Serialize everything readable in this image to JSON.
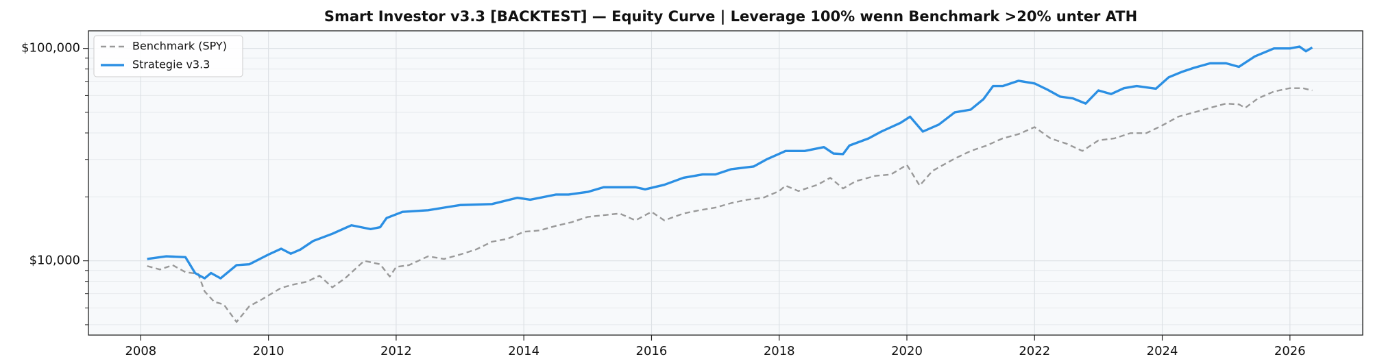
{
  "chart_data": {
    "type": "line",
    "title": "Smart Investor v3.3 [BACKTEST] — Equity Curve  |  Leverage 100% wenn Benchmark >20% unter ATH",
    "ylog": true,
    "grid": true,
    "legend": "upper left",
    "background": "#f7f9fb",
    "xlim": [
      2007.18,
      2027.14
    ],
    "xticks": [
      2008,
      2010,
      2012,
      2014,
      2016,
      2018,
      2020,
      2022,
      2024,
      2026
    ],
    "ylim": [
      4470,
      121000
    ],
    "yticks": [
      {
        "value": 10000,
        "label": "$10,000"
      },
      {
        "value": 100000,
        "label": "$100,000"
      }
    ],
    "yminorticks": [
      5000,
      6000,
      7000,
      8000,
      9000,
      20000,
      30000,
      40000,
      50000,
      60000,
      70000,
      80000,
      90000
    ],
    "series": [
      {
        "name": "Benchmark (SPY)",
        "color": "#999999",
        "dash": true,
        "x": [
          2008.1,
          2008.3,
          2008.5,
          2008.7,
          2008.9,
          2009.0,
          2009.15,
          2009.3,
          2009.5,
          2009.7,
          2009.9,
          2010.2,
          2010.4,
          2010.6,
          2010.8,
          2011.0,
          2011.2,
          2011.5,
          2011.75,
          2011.9,
          2012.0,
          2012.2,
          2012.5,
          2012.75,
          2013.0,
          2013.25,
          2013.5,
          2013.75,
          2014.0,
          2014.25,
          2014.5,
          2014.75,
          2015.0,
          2015.25,
          2015.5,
          2015.75,
          2016.0,
          2016.2,
          2016.5,
          2016.75,
          2017.0,
          2017.25,
          2017.5,
          2017.75,
          2018.0,
          2018.1,
          2018.3,
          2018.6,
          2018.8,
          2019.0,
          2019.2,
          2019.5,
          2019.75,
          2020.0,
          2020.2,
          2020.4,
          2020.75,
          2021.0,
          2021.25,
          2021.5,
          2021.75,
          2022.0,
          2022.25,
          2022.5,
          2022.75,
          2023.0,
          2023.25,
          2023.5,
          2023.75,
          2024.0,
          2024.25,
          2024.5,
          2024.75,
          2025.0,
          2025.2,
          2025.3,
          2025.5,
          2025.75,
          2026.0,
          2026.2,
          2026.35
        ],
        "values": [
          9450,
          9100,
          9540,
          8840,
          8670,
          7180,
          6410,
          6230,
          5150,
          6110,
          6590,
          7460,
          7740,
          7970,
          8510,
          7500,
          8270,
          10000,
          9630,
          8430,
          9360,
          9540,
          10500,
          10200,
          10700,
          11300,
          12300,
          12700,
          13700,
          13900,
          14600,
          15200,
          16100,
          16400,
          16700,
          15500,
          17000,
          15500,
          16700,
          17300,
          17800,
          18700,
          19400,
          19800,
          21300,
          22600,
          21300,
          22800,
          24600,
          21900,
          23700,
          25100,
          25500,
          28300,
          22600,
          26500,
          30300,
          32900,
          34900,
          37700,
          39500,
          42600,
          37700,
          35600,
          32900,
          36900,
          37700,
          39900,
          39900,
          43400,
          47700,
          50000,
          52500,
          55000,
          54500,
          52500,
          58200,
          62700,
          65000,
          65000,
          63400
        ]
      },
      {
        "name": "Strategie v3.3",
        "color": "#2b8fe3",
        "dash": false,
        "x": [
          2008.1,
          2008.4,
          2008.7,
          2008.85,
          2009.0,
          2009.1,
          2009.25,
          2009.5,
          2009.7,
          2010.0,
          2010.2,
          2010.35,
          2010.5,
          2010.7,
          2011.0,
          2011.3,
          2011.6,
          2011.75,
          2011.85,
          2012.1,
          2012.5,
          2012.75,
          2013.0,
          2013.5,
          2013.9,
          2014.1,
          2014.5,
          2014.7,
          2015.0,
          2015.25,
          2015.75,
          2015.9,
          2016.2,
          2016.5,
          2016.8,
          2017.0,
          2017.25,
          2017.6,
          2017.8,
          2018.1,
          2018.4,
          2018.7,
          2018.85,
          2019.0,
          2019.1,
          2019.4,
          2019.6,
          2019.9,
          2020.05,
          2020.25,
          2020.5,
          2020.75,
          2021.0,
          2021.2,
          2021.35,
          2021.5,
          2021.75,
          2022.0,
          2022.2,
          2022.4,
          2022.6,
          2022.8,
          2023.0,
          2023.2,
          2023.4,
          2023.6,
          2023.9,
          2024.1,
          2024.3,
          2024.5,
          2024.75,
          2025.0,
          2025.2,
          2025.45,
          2025.75,
          2026.0,
          2026.15,
          2026.25,
          2026.35
        ],
        "values": [
          10200,
          10500,
          10400,
          8760,
          8270,
          8760,
          8270,
          9540,
          9630,
          10700,
          11400,
          10800,
          11300,
          12400,
          13400,
          14700,
          14100,
          14400,
          15900,
          17000,
          17300,
          17800,
          18300,
          18500,
          19800,
          19400,
          20500,
          20500,
          21100,
          22200,
          22200,
          21700,
          22800,
          24600,
          25500,
          25500,
          27000,
          27800,
          30000,
          32900,
          32900,
          34300,
          32000,
          31800,
          34900,
          37700,
          40600,
          44600,
          47700,
          40600,
          43800,
          50000,
          51500,
          57700,
          66500,
          66500,
          70400,
          68400,
          64000,
          59300,
          58200,
          55000,
          63400,
          61000,
          65000,
          66500,
          64600,
          73100,
          77400,
          81100,
          85100,
          85100,
          81900,
          91700,
          100000,
          100000,
          102000,
          97000,
          101000
        ]
      }
    ]
  }
}
